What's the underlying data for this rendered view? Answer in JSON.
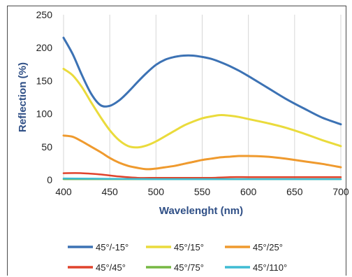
{
  "chart_data": {
    "type": "line",
    "title": "",
    "xlabel": "Wavelenght (nm)",
    "ylabel": "Reflection (%)",
    "xlim": [
      400,
      700
    ],
    "ylim": [
      0,
      250
    ],
    "xticks": [
      400,
      450,
      500,
      550,
      600,
      650,
      700
    ],
    "yticks": [
      0,
      50,
      100,
      150,
      200,
      250
    ],
    "grid": "vertical",
    "legend_position": "bottom",
    "series": [
      {
        "name": "45°/-15°",
        "color": "#3c72b4",
        "x": [
          400,
          410,
          420,
          430,
          440,
          450,
          460,
          470,
          480,
          490,
          500,
          510,
          520,
          530,
          540,
          550,
          560,
          570,
          580,
          590,
          600,
          620,
          640,
          660,
          680,
          700
        ],
        "y": [
          215,
          190,
          158,
          130,
          113,
          112,
          120,
          133,
          148,
          162,
          174,
          182,
          186,
          188,
          188,
          186,
          183,
          178,
          172,
          165,
          157,
          140,
          123,
          108,
          94,
          84
        ]
      },
      {
        "name": "45°/15°",
        "color": "#eadb3c",
        "x": [
          400,
          410,
          420,
          430,
          440,
          450,
          460,
          470,
          480,
          490,
          500,
          510,
          520,
          530,
          540,
          550,
          560,
          570,
          580,
          590,
          600,
          620,
          640,
          660,
          680,
          700
        ],
        "y": [
          168,
          158,
          140,
          117,
          95,
          75,
          60,
          51,
          49,
          52,
          58,
          66,
          74,
          82,
          88,
          93,
          96,
          98,
          97,
          95,
          92,
          86,
          79,
          70,
          60,
          51
        ]
      },
      {
        "name": "45°/25°",
        "color": "#ef9a2e",
        "x": [
          400,
          410,
          420,
          430,
          440,
          450,
          460,
          470,
          480,
          490,
          500,
          510,
          520,
          530,
          540,
          550,
          560,
          570,
          580,
          590,
          600,
          620,
          640,
          660,
          680,
          700
        ],
        "y": [
          67,
          65,
          58,
          50,
          42,
          33,
          26,
          21,
          18,
          16,
          17,
          19,
          21,
          24,
          27,
          30,
          32,
          34,
          35,
          36,
          36,
          35,
          32,
          28,
          24,
          19
        ]
      },
      {
        "name": "45°/45°",
        "color": "#e0432c",
        "x": [
          400,
          420,
          440,
          460,
          480,
          500,
          520,
          540,
          560,
          580,
          600,
          620,
          640,
          660,
          680,
          700
        ],
        "y": [
          10,
          10,
          8,
          5,
          3,
          3,
          3,
          3,
          3,
          4,
          4,
          4,
          4,
          4,
          4,
          4
        ]
      },
      {
        "name": "45°/75°",
        "color": "#76b843",
        "x": [
          400,
          450,
          500,
          550,
          600,
          650,
          700
        ],
        "y": [
          1,
          1,
          1,
          1,
          1,
          1,
          1
        ]
      },
      {
        "name": "45°/110°",
        "color": "#3fbcd3",
        "x": [
          400,
          450,
          500,
          550,
          600,
          650,
          700
        ],
        "y": [
          2,
          1.5,
          1,
          1,
          1,
          1,
          1
        ]
      }
    ]
  }
}
